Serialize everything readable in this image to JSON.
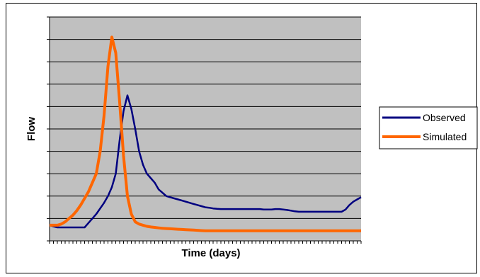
{
  "chart_data": {
    "type": "line",
    "title": "",
    "xlabel": "Time (days)",
    "ylabel": "Flow",
    "grid": true,
    "background": "#c0c0c0",
    "legend_position": "right",
    "ylim": [
      0,
      10
    ],
    "y_gridlines": 10,
    "x": [
      0,
      1,
      2,
      3,
      4,
      5,
      6,
      7,
      8,
      9,
      10,
      11,
      12,
      13,
      14,
      15,
      16,
      17,
      18,
      19,
      20,
      21,
      22,
      23,
      24,
      25,
      26,
      27,
      28,
      29,
      30,
      31,
      32,
      33,
      34,
      35,
      36,
      37,
      38,
      39,
      40,
      41,
      42,
      43,
      44,
      45,
      46,
      47,
      48,
      49,
      50,
      51,
      52,
      53,
      54,
      55,
      56,
      57,
      58,
      59,
      60,
      61,
      62,
      63,
      64,
      65,
      66,
      67,
      68,
      69,
      70,
      71,
      72,
      73,
      74,
      75,
      76,
      77,
      78,
      79,
      80
    ],
    "series": [
      {
        "name": "Observed",
        "color": "#000080",
        "values": [
          0.7,
          0.65,
          0.6,
          0.6,
          0.6,
          0.6,
          0.6,
          0.6,
          0.6,
          0.6,
          0.8,
          1.0,
          1.2,
          1.45,
          1.7,
          2.0,
          2.4,
          3.0,
          4.5,
          5.8,
          6.5,
          5.9,
          5.0,
          4.0,
          3.4,
          3.0,
          2.8,
          2.6,
          2.3,
          2.15,
          2.0,
          1.95,
          1.9,
          1.85,
          1.8,
          1.75,
          1.7,
          1.65,
          1.6,
          1.55,
          1.5,
          1.48,
          1.45,
          1.43,
          1.42,
          1.42,
          1.42,
          1.42,
          1.42,
          1.42,
          1.42,
          1.42,
          1.42,
          1.42,
          1.42,
          1.4,
          1.4,
          1.4,
          1.42,
          1.42,
          1.4,
          1.38,
          1.35,
          1.32,
          1.3,
          1.3,
          1.3,
          1.3,
          1.3,
          1.3,
          1.3,
          1.3,
          1.3,
          1.3,
          1.3,
          1.3,
          1.4,
          1.6,
          1.75,
          1.85,
          1.95
        ]
      },
      {
        "name": "Simulated",
        "color": "#ff6600",
        "values": [
          0.7,
          0.7,
          0.7,
          0.75,
          0.85,
          1.0,
          1.15,
          1.35,
          1.6,
          1.9,
          2.2,
          2.6,
          3.0,
          4.0,
          5.6,
          7.8,
          9.1,
          8.4,
          6.2,
          3.8,
          2.0,
          1.2,
          0.85,
          0.75,
          0.7,
          0.65,
          0.62,
          0.6,
          0.58,
          0.56,
          0.55,
          0.54,
          0.53,
          0.52,
          0.51,
          0.5,
          0.49,
          0.48,
          0.47,
          0.46,
          0.45,
          0.45,
          0.45,
          0.45,
          0.45,
          0.45,
          0.45,
          0.45,
          0.45,
          0.45,
          0.45,
          0.45,
          0.45,
          0.45,
          0.45,
          0.45,
          0.45,
          0.45,
          0.45,
          0.45,
          0.45,
          0.45,
          0.45,
          0.45,
          0.45,
          0.45,
          0.45,
          0.45,
          0.45,
          0.45,
          0.45,
          0.45,
          0.45,
          0.45,
          0.45,
          0.45,
          0.45,
          0.45,
          0.45,
          0.45,
          0.45
        ]
      }
    ]
  }
}
